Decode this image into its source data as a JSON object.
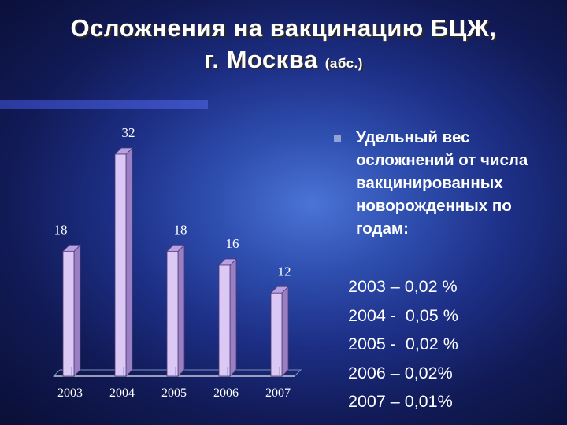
{
  "title": {
    "line1": "Осложнения на вакцинацию БЦЖ,",
    "line2": "г. Москва ",
    "line2_small": "(абс.)"
  },
  "note": {
    "bullet": "n",
    "text": "Удельный вес осложнений от числа вакцинированных новорожденных по годам:"
  },
  "stats": [
    "2003 – 0,02 %",
    "2004 -  0,05 %",
    "2005 -  0,02 %",
    "2006 – 0,02%",
    "2007 – 0,01%"
  ],
  "colors": {
    "bar_front": "#dcc8f5",
    "bar_side": "#9a7fc4",
    "bar_top": "#b9a0e6",
    "background_center": "#4a74d6",
    "text": "#ffffff"
  },
  "chart_data": {
    "type": "bar",
    "style": "3d",
    "categories": [
      "2003",
      "2004",
      "2005",
      "2006",
      "2007"
    ],
    "values": [
      18,
      32,
      18,
      16,
      12
    ],
    "data_labels": [
      "18",
      "32",
      "18",
      "16",
      "12"
    ],
    "ylim": [
      0,
      32
    ],
    "grid": false
  }
}
